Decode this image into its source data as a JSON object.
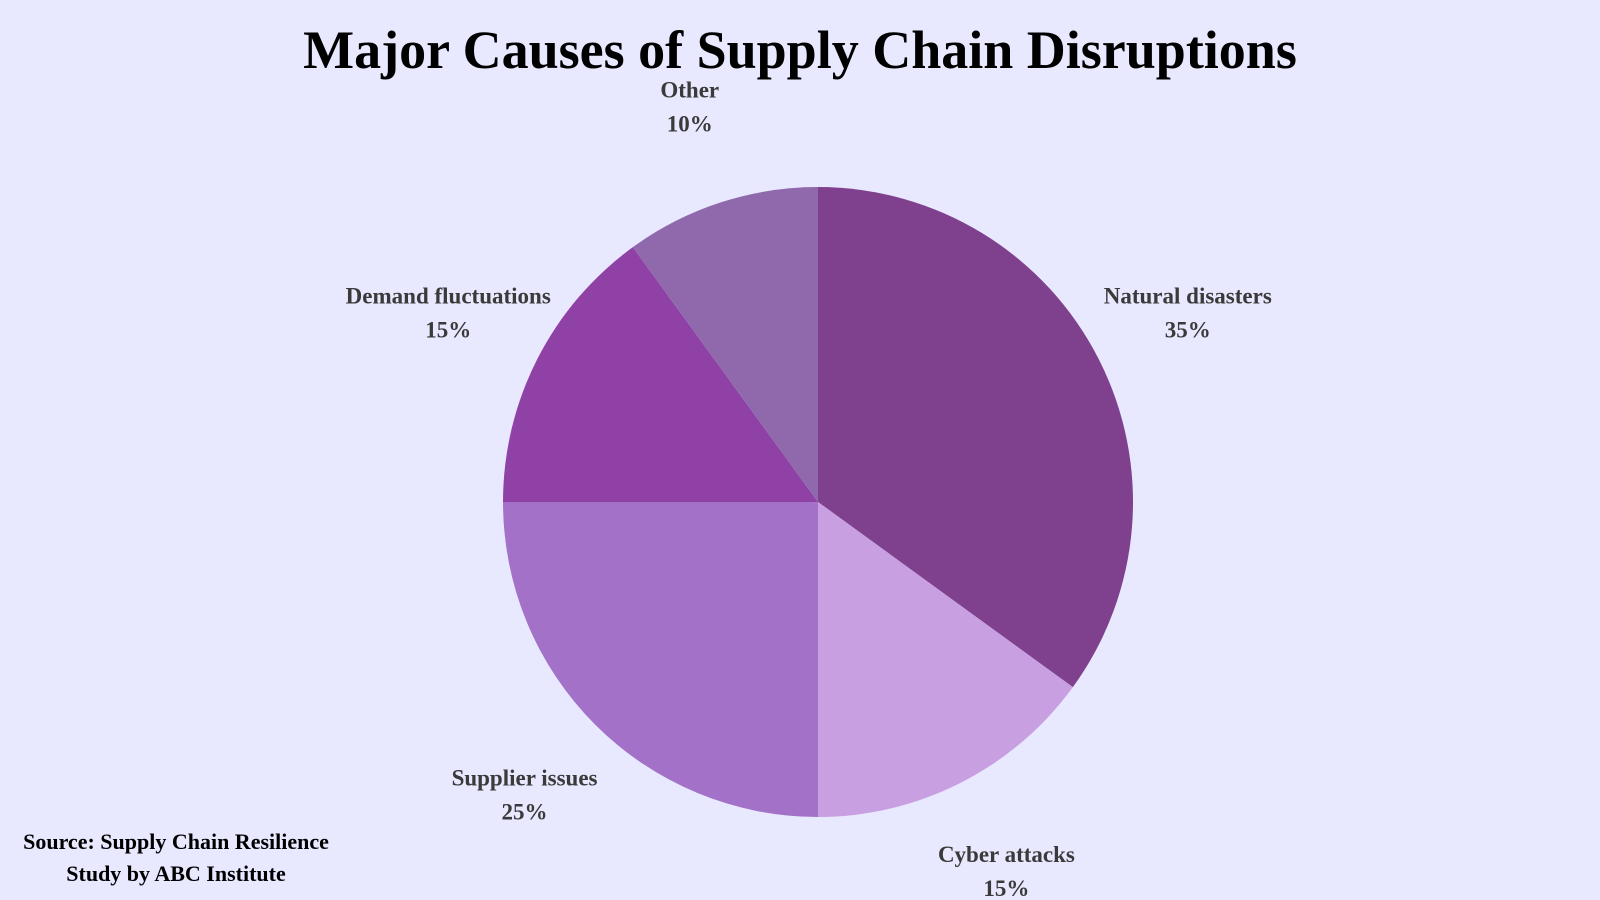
{
  "title": "Major Causes of Supply Chain Disruptions",
  "source": {
    "line1": "Source: Supply Chain Resilience",
    "line2": "Study by ABC Institute"
  },
  "colors": {
    "background": "#e8e8ff",
    "label_text": "#3a3a3a"
  },
  "chart_data": {
    "type": "pie",
    "title": "Major Causes of Supply Chain Disruptions",
    "start_angle": "12 o'clock",
    "direction": "clockwise",
    "slices": [
      {
        "label": "Natural disasters",
        "value": 35,
        "value_label": "35%",
        "color": "#7f418d"
      },
      {
        "label": "Cyber attacks",
        "value": 15,
        "value_label": "15%",
        "color": "#c8a0e1"
      },
      {
        "label": "Supplier issues",
        "value": 25,
        "value_label": "25%",
        "color": "#a372c8"
      },
      {
        "label": "Demand fluctuations",
        "value": 15,
        "value_label": "15%",
        "color": "#8f41a5"
      },
      {
        "label": "Other",
        "value": 10,
        "value_label": "10%",
        "color": "#9069ad"
      }
    ]
  }
}
